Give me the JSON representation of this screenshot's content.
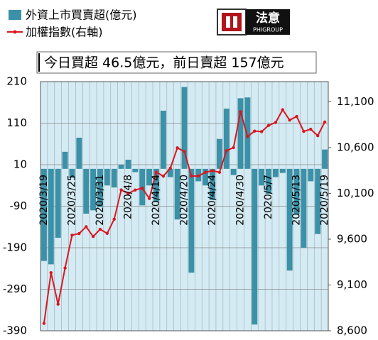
{
  "chart_data": {
    "type": "bar_line",
    "annotation": "今日買超 46.5億元，前日賣超 157億元",
    "logo_text": "法意",
    "logo_subtext": "PHIGROUP",
    "categories": [
      "2020/3/19",
      null,
      null,
      null,
      "2020/3/25",
      null,
      null,
      null,
      "2020/3/31",
      null,
      null,
      null,
      "2020/4/8",
      null,
      null,
      null,
      "2020/4/14",
      null,
      null,
      null,
      "2020/4/20",
      null,
      null,
      null,
      "2020/4/24",
      null,
      null,
      null,
      "2020/4/30",
      null,
      null,
      null,
      "2020/5/7",
      null,
      null,
      null,
      "2020/5/13",
      null,
      null,
      null,
      "2020/5/19"
    ],
    "series": [
      {
        "name": "外資上市買賣超(億元)",
        "color": "#3b91a7",
        "type": "bar",
        "values": [
          -222,
          -230,
          -166,
          41,
          -22,
          75,
          -108,
          -100,
          -92,
          -40,
          -45,
          10,
          22,
          -8,
          -88,
          -40,
          -80,
          140,
          -20,
          -122,
          197,
          -250,
          -30,
          -40,
          -75,
          72,
          145,
          -15,
          170,
          172,
          -375,
          -40,
          -60,
          -20,
          -10,
          -245,
          -110,
          -190,
          -30,
          -157,
          46.5
        ]
      },
      {
        "name": "加權指數(右軸)",
        "color": "#d9161f",
        "type": "line",
        "axis": "y2",
        "values": [
          8681,
          9234,
          8890,
          9285,
          9644,
          9661,
          9736,
          9629,
          9708,
          9663,
          9818,
          10138,
          10099,
          10137,
          10157,
          10045,
          10332,
          10288,
          10375,
          10597,
          10556,
          10289,
          10290,
          10330,
          10347,
          10330,
          10566,
          10600,
          10992,
          10720,
          10780,
          10774,
          10842,
          10874,
          11013,
          10900,
          10940,
          10777,
          10800,
          10730,
          10879
        ]
      }
    ],
    "ylim": [
      -390,
      210
    ],
    "yticks": [
      210,
      110,
      10,
      -90,
      -190,
      -290,
      -390
    ],
    "y2lim": [
      8600,
      11320
    ],
    "y2ticks": [
      {
        "value": 11100,
        "label": "11,100"
      },
      {
        "value": 10600,
        "label": "10,600"
      },
      {
        "value": 10100,
        "label": "10,100"
      },
      {
        "value": 9600,
        "label": "9,600"
      },
      {
        "value": 9100,
        "label": "9,100"
      },
      {
        "value": 8600,
        "label": "8,600"
      }
    ],
    "background": "#d5ebf4",
    "grid": true
  }
}
